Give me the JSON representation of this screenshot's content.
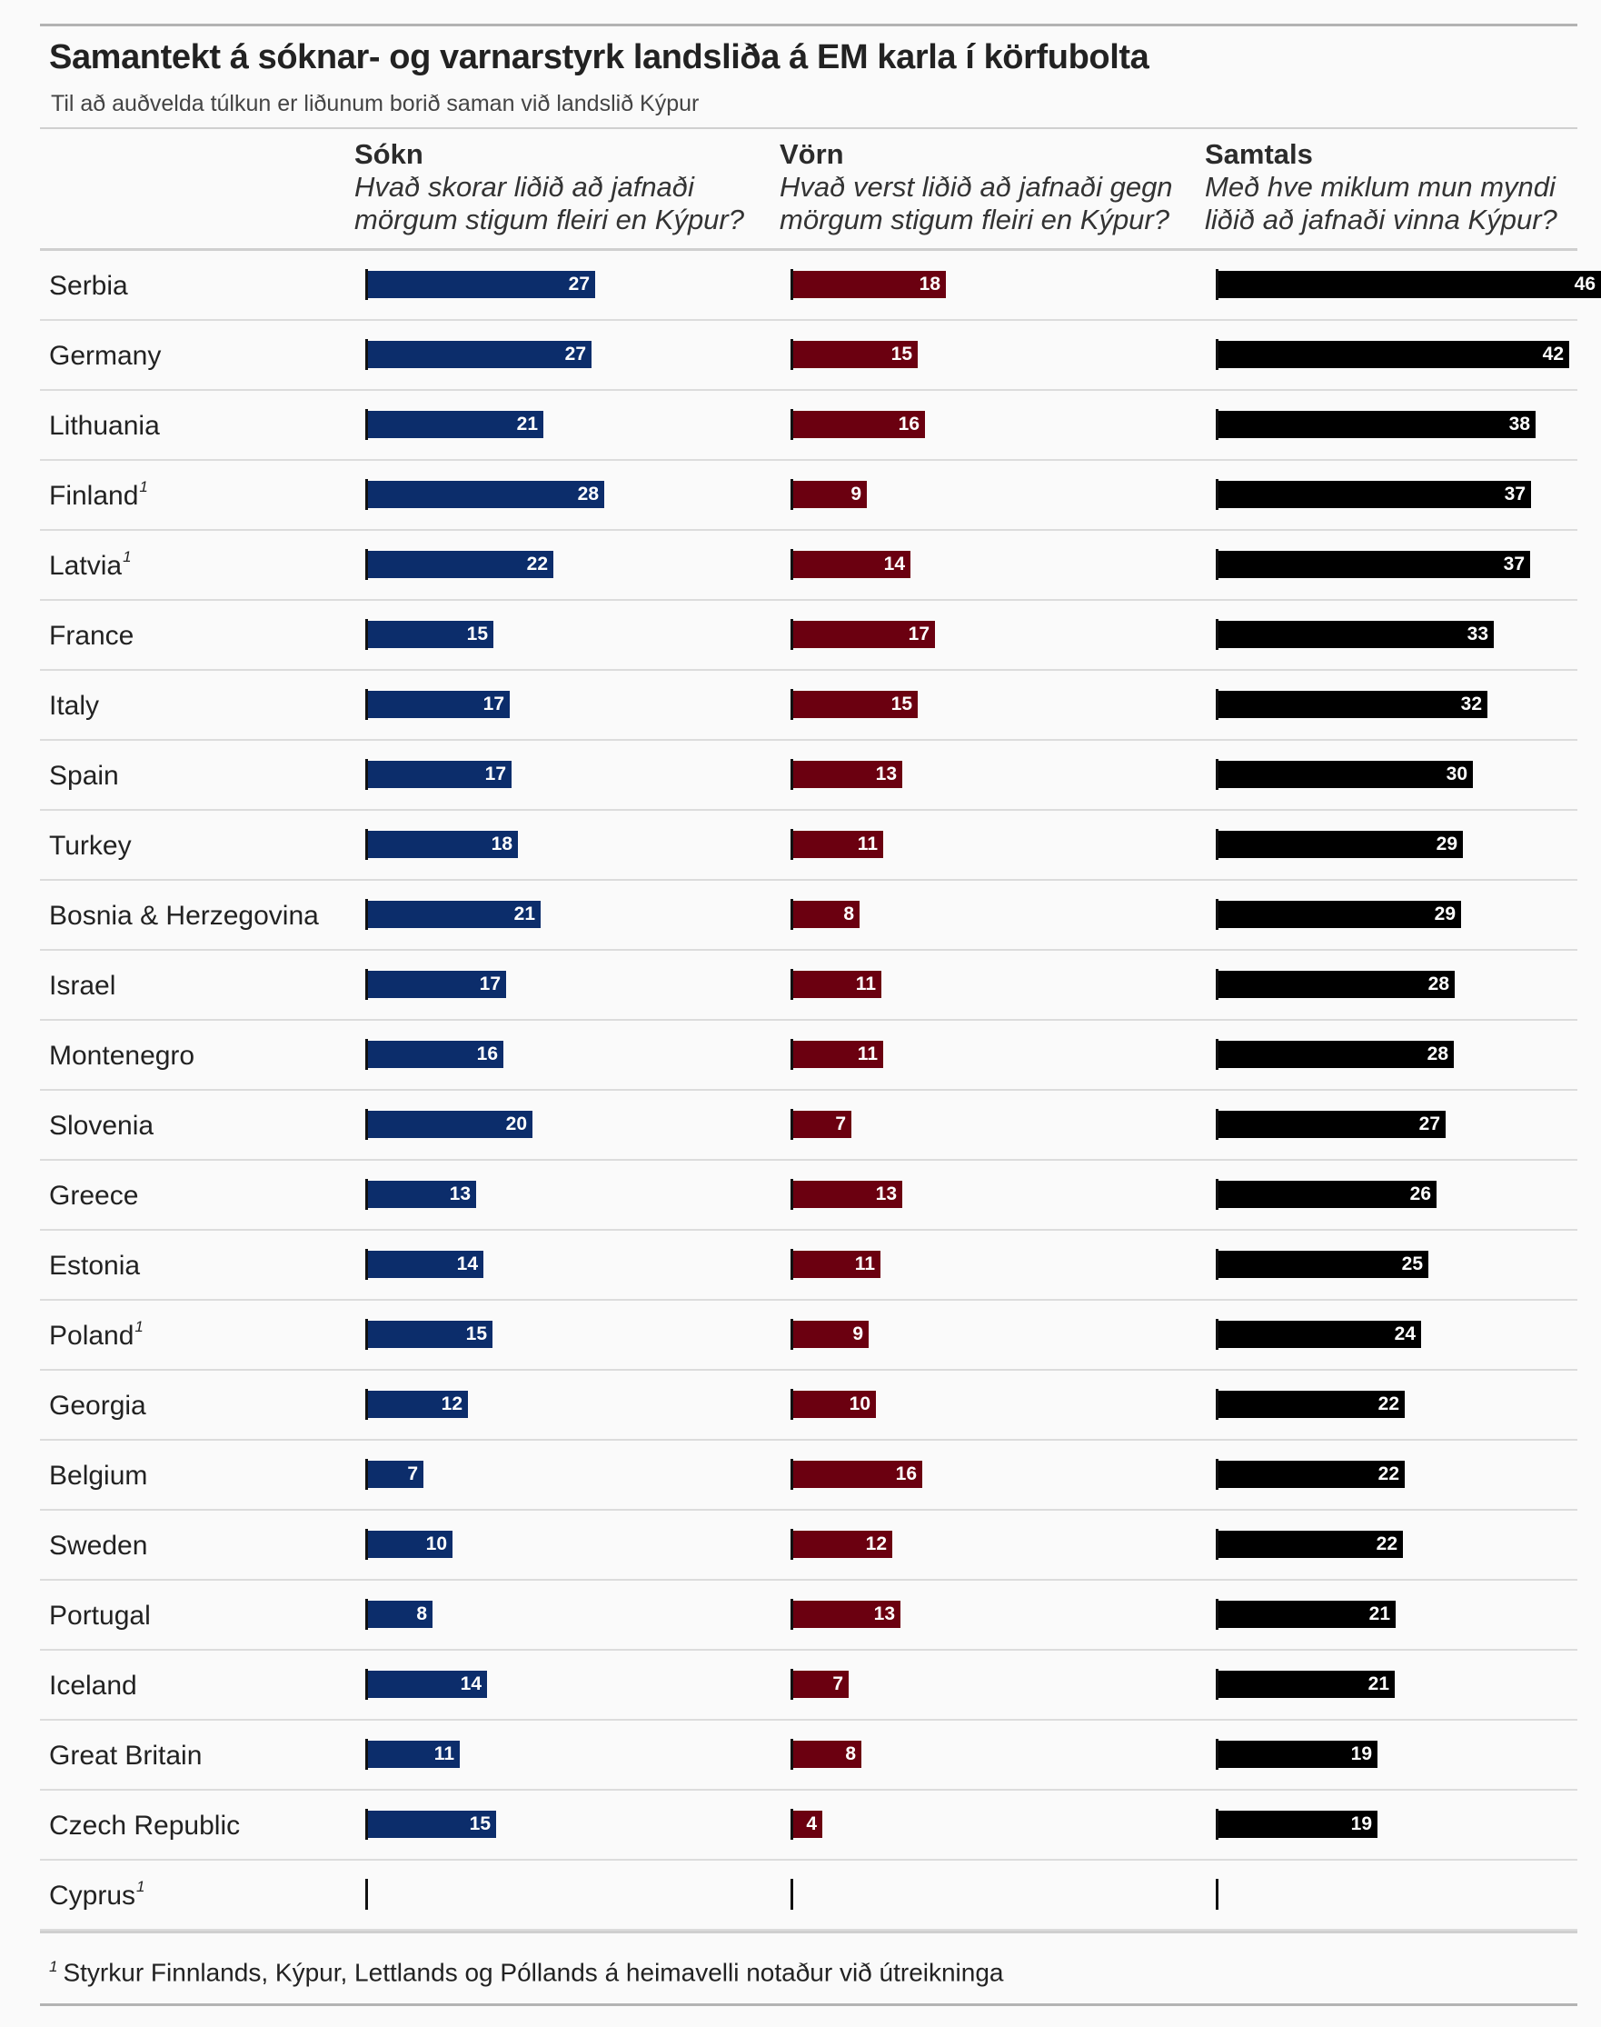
{
  "title": "Samantekt á sóknar- og varnarstyrk landsliða á EM karla í körfubolta",
  "subtitle": "Til að auðvelda túlkun er liðunum borið saman við landslið Kýpur",
  "colors": {
    "sokn": "#0c2d6b",
    "vorn": "#6b0010",
    "samtals": "#000000"
  },
  "columns": [
    {
      "key": "sokn",
      "name": "Sókn",
      "desc1": "Hvað skorar liðið að jafnaði",
      "desc2": "mörgum stigum fleiri en Kýpur?"
    },
    {
      "key": "vorn",
      "name": "Vörn",
      "desc1": "Hvað verst liðið að jafnaði gegn",
      "desc2": "mörgum stigum fleiri en Kýpur?"
    },
    {
      "key": "samtals",
      "name": "Samtals",
      "desc1": "Með hve miklum mun myndi",
      "desc2": "liðið að jafnaði vinna Kýpur?"
    }
  ],
  "footnote": {
    "mark": "1",
    "text": "Styrkur Finnlands, Kýpur, Lettlands og Póllands á heimavelli notaður við útreikninga"
  },
  "chart_data": {
    "type": "bar",
    "title": "Samantekt á sóknar- og varnarstyrk landsliða á EM karla í körfubolta",
    "categories": [
      "Serbia",
      "Germany",
      "Lithuania",
      "Finland",
      "Latvia",
      "France",
      "Italy",
      "Spain",
      "Turkey",
      "Bosnia & Herzegovina",
      "Israel",
      "Montenegro",
      "Slovenia",
      "Greece",
      "Estonia",
      "Poland",
      "Georgia",
      "Belgium",
      "Sweden",
      "Portugal",
      "Iceland",
      "Great Britain",
      "Czech Republic",
      "Cyprus"
    ],
    "footnote_marks": [
      "",
      "",
      "",
      "1",
      "1",
      "",
      "",
      "",
      "",
      "",
      "",
      "",
      "",
      "",
      "",
      "1",
      "",
      "",
      "",
      "",
      "",
      "",
      "",
      "1"
    ],
    "series": [
      {
        "name": "Sókn",
        "values": [
          27,
          27,
          21,
          28,
          22,
          15,
          17,
          17,
          18,
          21,
          17,
          16,
          20,
          13,
          14,
          15,
          12,
          7,
          10,
          8,
          14,
          11,
          15,
          0
        ]
      },
      {
        "name": "Vörn",
        "values": [
          18,
          15,
          16,
          9,
          14,
          17,
          15,
          13,
          11,
          8,
          11,
          11,
          7,
          13,
          11,
          9,
          10,
          16,
          12,
          13,
          7,
          8,
          4,
          0
        ]
      },
      {
        "name": "Samtals",
        "values": [
          46,
          42,
          38,
          37,
          37,
          33,
          32,
          30,
          29,
          29,
          28,
          28,
          27,
          26,
          25,
          24,
          22,
          22,
          22,
          21,
          21,
          19,
          19,
          0
        ]
      }
    ],
    "exact_values": {
      "Sókn": [
        27.2,
        26.8,
        21.1,
        28.3,
        22.3,
        15.2,
        17.1,
        17.3,
        18.1,
        20.8,
        16.7,
        16.3,
        19.8,
        13.1,
        14.0,
        15.0,
        12.1,
        6.9,
        10.3,
        8.0,
        14.4,
        11.2,
        15.5,
        0
      ],
      "Vörn": [
        18.4,
        15.1,
        15.9,
        9.0,
        14.2,
        17.1,
        15.0,
        13.2,
        11.0,
        8.2,
        10.8,
        11.0,
        7.2,
        13.2,
        10.6,
        9.2,
        10.1,
        15.6,
        12.0,
        13.0,
        6.9,
        8.4,
        3.8,
        0
      ],
      "Samtals": [
        45.6,
        41.8,
        37.9,
        37.3,
        37.2,
        32.9,
        32.2,
        30.4,
        29.3,
        29.0,
        28.3,
        28.2,
        27.2,
        26.1,
        25.2,
        24.3,
        22.4,
        22.4,
        22.1,
        21.3,
        21.2,
        19.1,
        19.1,
        0
      ]
    },
    "xlabel": "",
    "ylabel": "",
    "labels_hidden_for_zero": true
  }
}
